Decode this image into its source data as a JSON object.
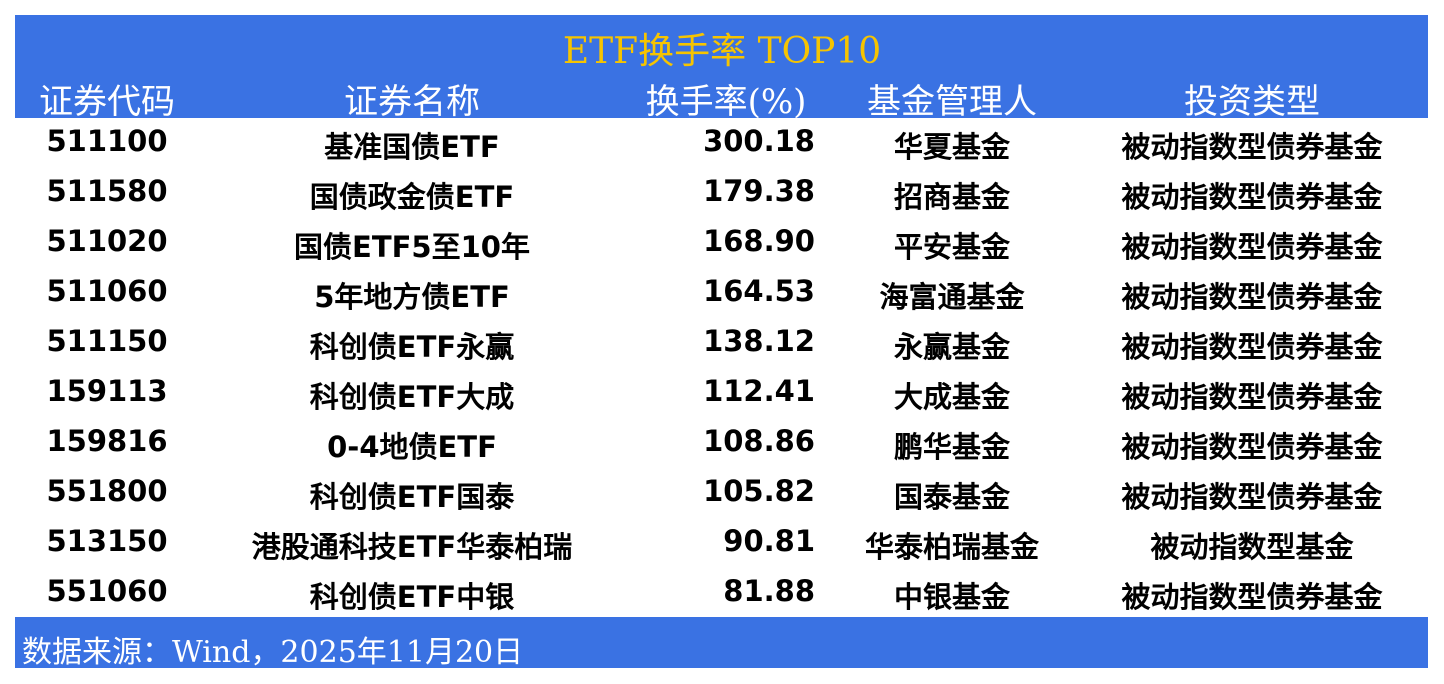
{
  "title": "ETF换手率 TOP10",
  "headers": [
    "证券代码",
    "证券名称",
    "换手率(%)",
    "基金管理人",
    "投资类型"
  ],
  "rows": [
    [
      "511100",
      "基准国债ETF",
      "300.18",
      "华夏基金",
      "被动指数型债券基金"
    ],
    [
      "511580",
      "国债政金债ETF",
      "179.38",
      "招商基金",
      "被动指数型债券基金"
    ],
    [
      "511020",
      "国债ETF5至10年",
      "168.90",
      "平安基金",
      "被动指数型债券基金"
    ],
    [
      "511060",
      "5年地方债ETF",
      "164.53",
      "海富通基金",
      "被动指数型债券基金"
    ],
    [
      "511150",
      "科创债ETF永赢",
      "138.12",
      "永赢基金",
      "被动指数型债券基金"
    ],
    [
      "159113",
      "科创债ETF大成",
      "112.41",
      "大成基金",
      "被动指数型债券基金"
    ],
    [
      "159816",
      "0-4地债ETF",
      "108.86",
      "鹏华基金",
      "被动指数型债券基金"
    ],
    [
      "551800",
      "科创债ETF国泰",
      "105.82",
      "国泰基金",
      "被动指数型债券基金"
    ],
    [
      "513150",
      "港股通科技ETF华泰柏瑞",
      "90.81",
      "华泰柏瑞基金",
      "被动指数型基金"
    ],
    [
      "551060",
      "科创债ETF中银",
      "81.88",
      "中银基金",
      "被动指数型债券基金"
    ]
  ],
  "source": "数据来源：Wind，2025年11月20日",
  "colors": {
    "band": "#3a72e3",
    "title": "#f6c400"
  }
}
